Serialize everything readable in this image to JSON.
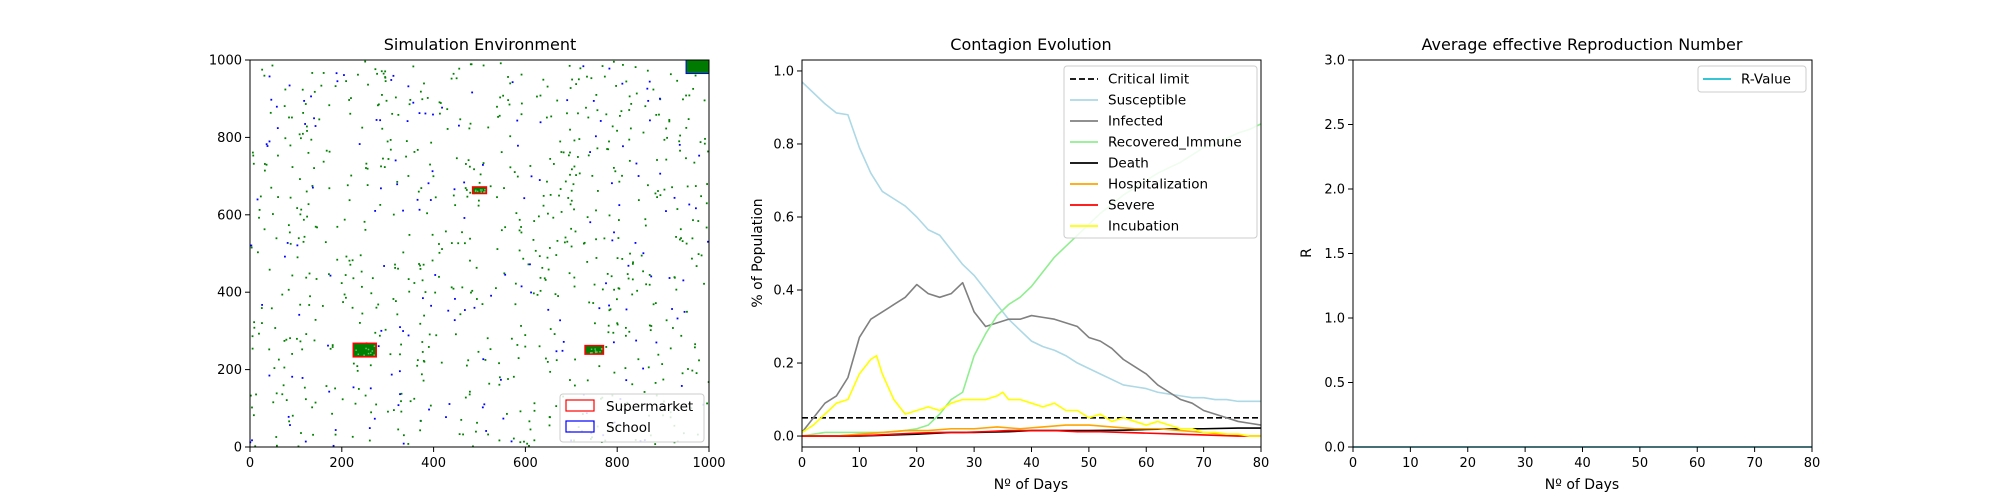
{
  "figure": {
    "background": "#ffffff"
  },
  "chart_data": [
    {
      "type": "scatter",
      "title": "Simulation Environment",
      "xlabel": "",
      "ylabel": "",
      "xlim": [
        0,
        1000
      ],
      "ylim": [
        0,
        1000
      ],
      "xticks": [
        0,
        200,
        400,
        600,
        800,
        1000
      ],
      "yticks": [
        0,
        200,
        400,
        600,
        800,
        1000
      ],
      "point_colors": {
        "resident": "#008000",
        "student": "#0000ff"
      },
      "point_share": {
        "resident": 0.82,
        "student": 0.18
      },
      "locations": [
        {
          "kind": "supermarket",
          "x0": 485,
          "x1": 515,
          "y0": 655,
          "y1": 672
        },
        {
          "kind": "supermarket",
          "x0": 225,
          "x1": 275,
          "y0": 233,
          "y1": 268
        },
        {
          "kind": "supermarket",
          "x0": 730,
          "x1": 770,
          "y0": 240,
          "y1": 262
        },
        {
          "kind": "home_corner",
          "x0": 950,
          "x1": 1000,
          "y0": 965,
          "y1": 1000
        }
      ],
      "legend": {
        "position": "lower-right",
        "entries": [
          {
            "label": "Supermarket",
            "color": "#ff0000"
          },
          {
            "label": "School",
            "color": "#0000ff"
          }
        ]
      }
    },
    {
      "type": "line",
      "title": "Contagion Evolution",
      "xlabel": "Nº of Days",
      "ylabel": "% of Population",
      "xlim": [
        0,
        80
      ],
      "ylim": [
        -0.03,
        1.03
      ],
      "xticks": [
        0,
        10,
        20,
        30,
        40,
        50,
        60,
        70,
        80
      ],
      "yticks": [
        0.0,
        0.2,
        0.4,
        0.6,
        0.8,
        1.0
      ],
      "yticklabels": [
        "0.0",
        "0.2",
        "0.4",
        "0.6",
        "0.8",
        "1.0"
      ],
      "legend": {
        "position": "upper-right"
      },
      "series": [
        {
          "name": "Critical limit",
          "color": "#000000",
          "dashed": true,
          "x": [
            0,
            80
          ],
          "y": [
            0.05,
            0.05
          ]
        },
        {
          "name": "Susceptible",
          "color": "#add8e6",
          "x": [
            0,
            2,
            4,
            6,
            8,
            10,
            12,
            14,
            16,
            18,
            20,
            22,
            24,
            26,
            28,
            30,
            32,
            34,
            36,
            38,
            40,
            42,
            44,
            46,
            48,
            50,
            52,
            54,
            56,
            58,
            60,
            62,
            64,
            66,
            68,
            70,
            72,
            74,
            76,
            78,
            80
          ],
          "y": [
            0.97,
            0.94,
            0.91,
            0.885,
            0.88,
            0.79,
            0.72,
            0.67,
            0.65,
            0.63,
            0.6,
            0.565,
            0.55,
            0.51,
            0.47,
            0.44,
            0.4,
            0.36,
            0.32,
            0.29,
            0.26,
            0.245,
            0.235,
            0.22,
            0.2,
            0.185,
            0.17,
            0.155,
            0.14,
            0.135,
            0.13,
            0.12,
            0.115,
            0.11,
            0.105,
            0.105,
            0.1,
            0.1,
            0.095,
            0.095,
            0.095
          ]
        },
        {
          "name": "Infected",
          "color": "#808080",
          "x": [
            0,
            2,
            4,
            6,
            8,
            10,
            12,
            14,
            16,
            18,
            20,
            22,
            24,
            26,
            28,
            30,
            32,
            34,
            36,
            38,
            40,
            42,
            44,
            46,
            48,
            50,
            52,
            54,
            56,
            58,
            60,
            62,
            64,
            66,
            68,
            70,
            72,
            74,
            76,
            78,
            80
          ],
          "y": [
            0.01,
            0.05,
            0.09,
            0.11,
            0.16,
            0.27,
            0.32,
            0.34,
            0.36,
            0.38,
            0.415,
            0.39,
            0.38,
            0.39,
            0.42,
            0.34,
            0.3,
            0.31,
            0.32,
            0.32,
            0.33,
            0.325,
            0.32,
            0.31,
            0.3,
            0.27,
            0.26,
            0.24,
            0.21,
            0.19,
            0.17,
            0.14,
            0.12,
            0.1,
            0.09,
            0.07,
            0.06,
            0.05,
            0.04,
            0.035,
            0.03
          ]
        },
        {
          "name": "Recovered_Immune",
          "color": "#90ee90",
          "x": [
            0,
            2,
            4,
            6,
            8,
            10,
            12,
            14,
            16,
            18,
            20,
            22,
            24,
            26,
            28,
            30,
            32,
            34,
            36,
            38,
            40,
            42,
            44,
            46,
            48,
            50,
            52,
            54,
            56,
            58,
            60,
            62,
            64,
            66,
            68,
            70,
            72,
            74,
            76,
            78,
            80
          ],
          "y": [
            0.0,
            0.005,
            0.01,
            0.01,
            0.01,
            0.01,
            0.01,
            0.01,
            0.012,
            0.015,
            0.02,
            0.03,
            0.06,
            0.1,
            0.12,
            0.22,
            0.28,
            0.33,
            0.36,
            0.38,
            0.41,
            0.45,
            0.49,
            0.52,
            0.55,
            0.58,
            0.61,
            0.635,
            0.66,
            0.68,
            0.7,
            0.72,
            0.735,
            0.75,
            0.77,
            0.79,
            0.8,
            0.815,
            0.83,
            0.84,
            0.855
          ]
        },
        {
          "name": "Death",
          "color": "#000000",
          "x": [
            0,
            10,
            20,
            26,
            30,
            36,
            40,
            46,
            50,
            56,
            60,
            66,
            70,
            76,
            80
          ],
          "y": [
            0.0,
            0.0,
            0.005,
            0.01,
            0.01,
            0.012,
            0.015,
            0.015,
            0.015,
            0.016,
            0.018,
            0.02,
            0.02,
            0.022,
            0.022
          ]
        },
        {
          "name": "Hospitalization",
          "color": "#ffa500",
          "x": [
            0,
            6,
            10,
            14,
            18,
            22,
            26,
            30,
            34,
            38,
            42,
            46,
            50,
            54,
            58,
            62,
            66,
            70,
            74,
            78,
            80
          ],
          "y": [
            0.0,
            0.0,
            0.005,
            0.01,
            0.015,
            0.015,
            0.02,
            0.02,
            0.025,
            0.02,
            0.025,
            0.03,
            0.03,
            0.025,
            0.02,
            0.02,
            0.015,
            0.01,
            0.005,
            0.0,
            0.0
          ]
        },
        {
          "name": "Severe",
          "color": "#ff0000",
          "x": [
            0,
            8,
            12,
            16,
            20,
            24,
            28,
            32,
            36,
            40,
            44,
            48,
            52,
            56,
            60,
            64,
            68,
            72,
            76,
            80
          ],
          "y": [
            0.0,
            0.0,
            0.002,
            0.005,
            0.008,
            0.01,
            0.01,
            0.012,
            0.015,
            0.015,
            0.015,
            0.012,
            0.012,
            0.01,
            0.008,
            0.006,
            0.004,
            0.002,
            0.0,
            0.0
          ]
        },
        {
          "name": "Incubation",
          "color": "#ffff00",
          "x": [
            0,
            2,
            4,
            6,
            8,
            10,
            12,
            13,
            14,
            16,
            18,
            20,
            22,
            24,
            26,
            28,
            30,
            32,
            34,
            35,
            36,
            38,
            40,
            42,
            44,
            46,
            48,
            50,
            52,
            54,
            56,
            58,
            60,
            62,
            64,
            66,
            68,
            70,
            72,
            74,
            76,
            78,
            80
          ],
          "y": [
            0.01,
            0.03,
            0.06,
            0.09,
            0.1,
            0.17,
            0.21,
            0.22,
            0.17,
            0.1,
            0.06,
            0.07,
            0.08,
            0.07,
            0.09,
            0.1,
            0.1,
            0.1,
            0.11,
            0.12,
            0.1,
            0.1,
            0.09,
            0.08,
            0.09,
            0.07,
            0.07,
            0.05,
            0.06,
            0.04,
            0.05,
            0.04,
            0.03,
            0.04,
            0.03,
            0.02,
            0.02,
            0.01,
            0.01,
            0.005,
            0.005,
            0.0,
            0.0
          ]
        }
      ]
    },
    {
      "type": "line",
      "title": "Average effective Reproduction Number",
      "xlabel": "Nº of Days",
      "ylabel": "R",
      "xlim": [
        0,
        80
      ],
      "ylim": [
        0,
        3
      ],
      "xticks": [
        0,
        10,
        20,
        30,
        40,
        50,
        60,
        70,
        80
      ],
      "yticks": [
        0.0,
        0.5,
        1.0,
        1.5,
        2.0,
        2.5,
        3.0
      ],
      "yticklabels": [
        "0.0",
        "0.5",
        "1.0",
        "1.5",
        "2.0",
        "2.5",
        "3.0"
      ],
      "legend": {
        "position": "upper-right"
      },
      "series": [
        {
          "name": "R-Value",
          "color": "#17becf",
          "x": [
            0,
            80
          ],
          "y": [
            0,
            0
          ]
        }
      ]
    }
  ]
}
